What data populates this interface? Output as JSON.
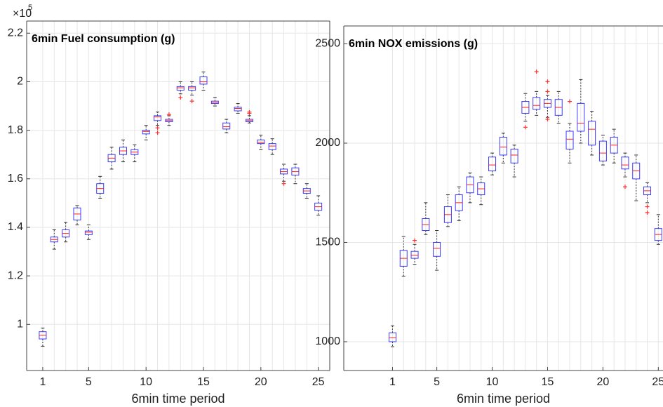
{
  "chart_data": [
    {
      "type": "box",
      "title": "6min Fuel consumption (g)",
      "xlabel": "6min time period",
      "y_multiplier": "×10",
      "y_multiplier_exponent": "5",
      "x": [
        1,
        2,
        3,
        4,
        5,
        6,
        7,
        8,
        9,
        10,
        11,
        12,
        13,
        14,
        15,
        16,
        17,
        18,
        19,
        20,
        21,
        22,
        23,
        24,
        25
      ],
      "xlim": [
        -0.4,
        26
      ],
      "xticks": [
        1,
        5,
        10,
        15,
        20,
        25
      ],
      "ylim": [
        0.81,
        2.25
      ],
      "yticks": [
        1,
        1.2,
        1.4,
        1.6,
        1.8,
        2,
        2.2
      ],
      "grid": true,
      "box_color": "#3b3bff",
      "median_color": "#ff2020",
      "whisker_color": "#333333",
      "outlier_color": "#ff3030",
      "boxes": [
        {
          "min": 0.91,
          "q1": 0.94,
          "median": 0.955,
          "q3": 0.97,
          "max": 0.985
        },
        {
          "min": 1.31,
          "q1": 1.34,
          "median": 1.35,
          "q3": 1.36,
          "max": 1.39
        },
        {
          "min": 1.34,
          "q1": 1.36,
          "median": 1.375,
          "q3": 1.39,
          "max": 1.42
        },
        {
          "min": 1.41,
          "q1": 1.43,
          "median": 1.455,
          "q3": 1.48,
          "max": 1.49
        },
        {
          "min": 1.35,
          "q1": 1.37,
          "median": 1.38,
          "q3": 1.385,
          "max": 1.41
        },
        {
          "min": 1.52,
          "q1": 1.54,
          "median": 1.56,
          "q3": 1.58,
          "max": 1.61
        },
        {
          "min": 1.64,
          "q1": 1.67,
          "median": 1.685,
          "q3": 1.7,
          "max": 1.73
        },
        {
          "min": 1.67,
          "q1": 1.7,
          "median": 1.715,
          "q3": 1.73,
          "max": 1.76
        },
        {
          "min": 1.67,
          "q1": 1.7,
          "median": 1.71,
          "q3": 1.72,
          "max": 1.74
        },
        {
          "min": 1.76,
          "q1": 1.785,
          "median": 1.795,
          "q3": 1.8,
          "max": 1.82
        },
        {
          "min": 1.82,
          "q1": 1.84,
          "median": 1.855,
          "q3": 1.86,
          "max": 1.875,
          "outliers": [
            1.79,
            1.81
          ]
        },
        {
          "min": 1.82,
          "q1": 1.835,
          "median": 1.84,
          "q3": 1.845,
          "max": 1.86,
          "outliers": [
            1.865
          ]
        },
        {
          "min": 1.95,
          "q1": 1.965,
          "median": 1.975,
          "q3": 1.98,
          "max": 2.0,
          "outliers": [
            1.935
          ]
        },
        {
          "min": 1.945,
          "q1": 1.965,
          "median": 1.975,
          "q3": 1.98,
          "max": 2.0,
          "outliers": [
            1.92
          ]
        },
        {
          "min": 1.965,
          "q1": 1.99,
          "median": 2.0,
          "q3": 2.02,
          "max": 2.04
        },
        {
          "min": 1.9,
          "q1": 1.91,
          "median": 1.915,
          "q3": 1.92,
          "max": 1.935
        },
        {
          "min": 1.79,
          "q1": 1.805,
          "median": 1.815,
          "q3": 1.83,
          "max": 1.845
        },
        {
          "min": 1.87,
          "q1": 1.88,
          "median": 1.89,
          "q3": 1.895,
          "max": 1.91
        },
        {
          "min": 1.83,
          "q1": 1.835,
          "median": 1.84,
          "q3": 1.845,
          "max": 1.86,
          "outliers": [
            1.87,
            1.875
          ]
        },
        {
          "min": 1.72,
          "q1": 1.745,
          "median": 1.75,
          "q3": 1.76,
          "max": 1.78
        },
        {
          "min": 1.7,
          "q1": 1.72,
          "median": 1.735,
          "q3": 1.745,
          "max": 1.765
        },
        {
          "min": 1.59,
          "q1": 1.62,
          "median": 1.63,
          "q3": 1.64,
          "max": 1.66,
          "outliers": [
            1.58
          ]
        },
        {
          "min": 1.58,
          "q1": 1.615,
          "median": 1.63,
          "q3": 1.645,
          "max": 1.66
        },
        {
          "min": 1.52,
          "q1": 1.54,
          "median": 1.55,
          "q3": 1.56,
          "max": 1.58
        },
        {
          "min": 1.45,
          "q1": 1.47,
          "median": 1.485,
          "q3": 1.5,
          "max": 1.53
        }
      ]
    },
    {
      "type": "box",
      "title": "6min NOX emissions (g)",
      "xlabel": "6min time period",
      "x": [
        1,
        2,
        3,
        4,
        5,
        6,
        7,
        8,
        9,
        10,
        11,
        12,
        13,
        14,
        15,
        16,
        17,
        18,
        19,
        20,
        21,
        22,
        23,
        24,
        25
      ],
      "xlim": [
        -3.4,
        26.5
      ],
      "xticks": [
        1,
        5,
        10,
        15,
        20,
        25
      ],
      "ylim": [
        855,
        2590
      ],
      "yticks": [
        1000,
        1500,
        2000,
        2500
      ],
      "grid": true,
      "box_color": "#3b3bff",
      "median_color": "#ff2020",
      "whisker_color": "#333333",
      "outlier_color": "#ff3030",
      "boxes": [
        {
          "min": 975,
          "q1": 1000,
          "median": 1020,
          "q3": 1045,
          "max": 1080
        },
        {
          "min": 1330,
          "q1": 1380,
          "median": 1420,
          "q3": 1460,
          "max": 1530
        },
        {
          "min": 1390,
          "q1": 1420,
          "median": 1435,
          "q3": 1455,
          "max": 1490,
          "outliers": [
            1510
          ]
        },
        {
          "min": 1540,
          "q1": 1560,
          "median": 1590,
          "q3": 1620,
          "max": 1700
        },
        {
          "min": 1360,
          "q1": 1430,
          "median": 1470,
          "q3": 1500,
          "max": 1560
        },
        {
          "min": 1580,
          "q1": 1600,
          "median": 1640,
          "q3": 1680,
          "max": 1740
        },
        {
          "min": 1610,
          "q1": 1660,
          "median": 1700,
          "q3": 1740,
          "max": 1780
        },
        {
          "min": 1700,
          "q1": 1750,
          "median": 1790,
          "q3": 1830,
          "max": 1850
        },
        {
          "min": 1690,
          "q1": 1740,
          "median": 1770,
          "q3": 1800,
          "max": 1830
        },
        {
          "min": 1840,
          "q1": 1860,
          "median": 1890,
          "q3": 1930,
          "max": 1950
        },
        {
          "min": 1900,
          "q1": 1940,
          "median": 1980,
          "q3": 2030,
          "max": 2050
        },
        {
          "min": 1830,
          "q1": 1900,
          "median": 1940,
          "q3": 1970,
          "max": 1990
        },
        {
          "min": 2110,
          "q1": 2150,
          "median": 2180,
          "q3": 2210,
          "max": 2250,
          "outliers": [
            2080
          ]
        },
        {
          "min": 2140,
          "q1": 2170,
          "median": 2190,
          "q3": 2230,
          "max": 2260,
          "outliers": [
            2360
          ]
        },
        {
          "min": 2130,
          "q1": 2180,
          "median": 2200,
          "q3": 2220,
          "max": 2240,
          "outliers": [
            2120,
            2260,
            2310
          ]
        },
        {
          "min": 2100,
          "q1": 2140,
          "median": 2180,
          "q3": 2220,
          "max": 2260
        },
        {
          "min": 1900,
          "q1": 1970,
          "median": 2020,
          "q3": 2060,
          "max": 2100,
          "outliers": [
            2210
          ]
        },
        {
          "min": 2000,
          "q1": 2060,
          "median": 2100,
          "q3": 2200,
          "max": 2320
        },
        {
          "min": 1940,
          "q1": 1990,
          "median": 2070,
          "q3": 2110,
          "max": 2160
        },
        {
          "min": 1890,
          "q1": 1910,
          "median": 1950,
          "q3": 2010,
          "max": 2040
        },
        {
          "min": 1900,
          "q1": 1950,
          "median": 1990,
          "q3": 2030,
          "max": 2070
        },
        {
          "min": 1830,
          "q1": 1870,
          "median": 1890,
          "q3": 1930,
          "max": 1950,
          "outliers": [
            1780
          ]
        },
        {
          "min": 1710,
          "q1": 1820,
          "median": 1860,
          "q3": 1900,
          "max": 1940
        },
        {
          "min": 1700,
          "q1": 1740,
          "median": 1760,
          "q3": 1780,
          "max": 1800,
          "outliers": [
            1680,
            1650
          ]
        },
        {
          "min": 1490,
          "q1": 1510,
          "median": 1540,
          "q3": 1570,
          "max": 1640
        }
      ]
    }
  ]
}
